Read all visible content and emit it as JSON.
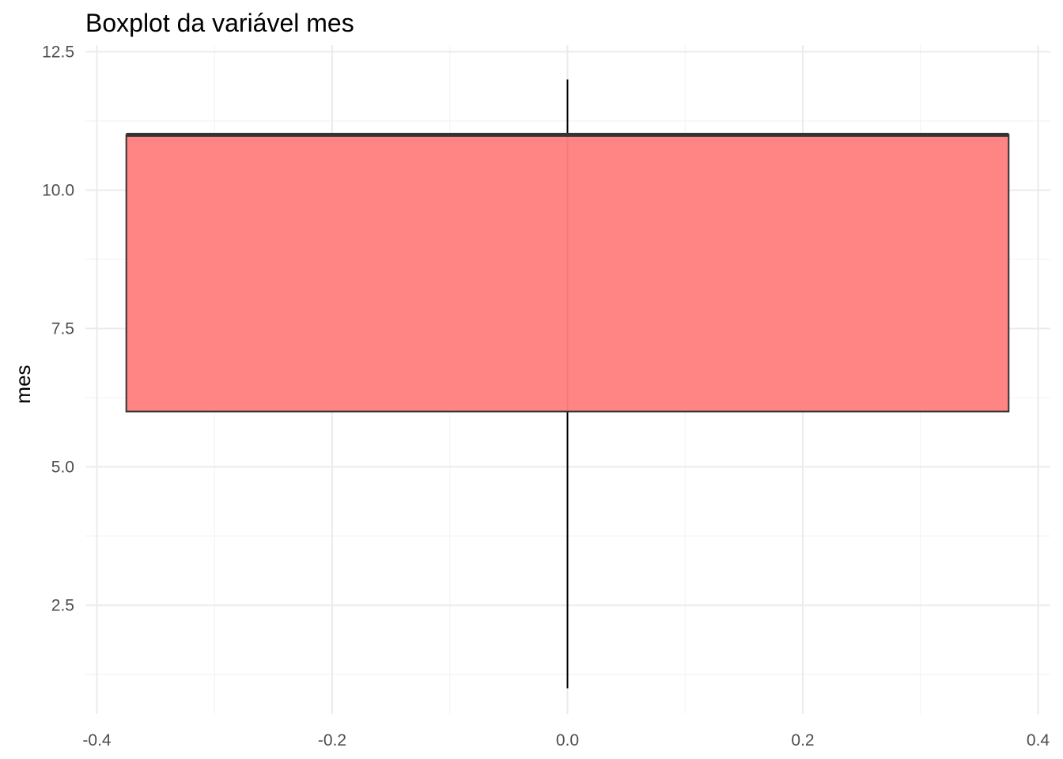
{
  "chart_data": {
    "type": "boxplot",
    "title": "Boxplot da variável mes",
    "xlabel": "",
    "ylabel": "mes",
    "xlim": [
      -0.42,
      0.42
    ],
    "ylim": [
      0.8,
      12.5
    ],
    "x_ticks": [
      -0.4,
      -0.2,
      0.0,
      0.2,
      0.4
    ],
    "x_tick_labels": [
      "-0.4",
      "-0.2",
      "0.0",
      "0.2",
      "0.4"
    ],
    "y_ticks": [
      2.5,
      5.0,
      7.5,
      10.0,
      12.5
    ],
    "y_tick_labels": [
      "2.5",
      "5.0",
      "7.5",
      "10.0",
      "12.5"
    ],
    "grid": true,
    "box": {
      "center": 0.0,
      "half_width": 0.375,
      "min": 1,
      "q1": 6,
      "median": 11,
      "q3": 11,
      "max": 12,
      "fill": "#ff7f7f",
      "outline": "#333333"
    }
  }
}
